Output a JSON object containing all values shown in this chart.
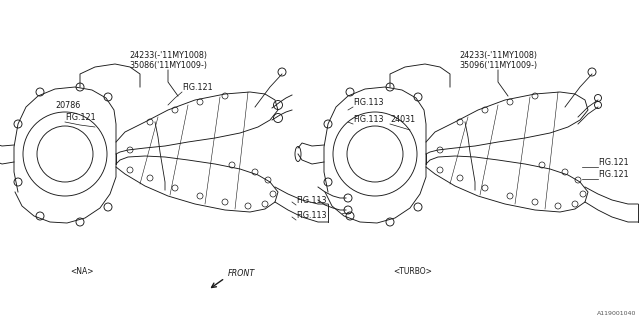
{
  "title": "",
  "bg_color": "#ffffff",
  "line_color": "#1a1a1a",
  "fig_width": 6.4,
  "fig_height": 3.2,
  "dpi": 100,
  "diagram_id": "A119001040",
  "labels": {
    "na": "<NA>",
    "turbo": "<TURBO>",
    "front": "FRONT",
    "left_top1": "24233(-'11MY1008)",
    "left_top2": "35086('11MY1009-)",
    "left_fig121_top": "FIG.121",
    "left_20786": "20786",
    "left_fig121_mid": "FIG.121",
    "right_top1": "24233(-'11MY1008)",
    "right_top2": "35096('11MY1009-)",
    "right_24031": "24031",
    "right_fig121_bot1": "FIG.121",
    "right_fig121_bot2": "FIG.121",
    "fig113_center_top": "FIG.113",
    "fig113_center_mid": "FIG.113",
    "fig113_center_bot1": "FIG.113",
    "fig113_center_bot2": "FIG.113"
  }
}
